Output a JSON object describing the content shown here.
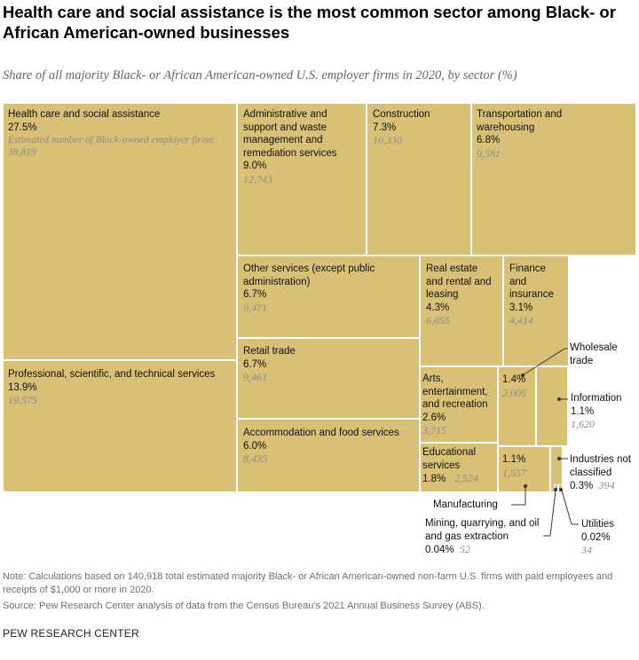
{
  "header": {
    "title": "Health care and social assistance is the most common sector among Black- or African American-owned businesses",
    "subtitle": "Share of all majority Black- or African American-owned U.S. employer firms in 2020, by sector (%)"
  },
  "chart_data": {
    "type": "treemap",
    "tile_color": "#d8c076",
    "count_label": "Estimated number of Black-owned employer firms: 38,819",
    "items": [
      {
        "name": "Health care and social assistance",
        "percent": "27.5%",
        "value": 27.5,
        "count": "38,819"
      },
      {
        "name": "Professional, scientific, and technical services",
        "percent": "13.9%",
        "value": 13.9,
        "count": "19,575"
      },
      {
        "name": "Administrative and support and waste management and remediation services",
        "percent": "9.0%",
        "value": 9.0,
        "count": "12,743"
      },
      {
        "name": "Construction",
        "percent": "7.3%",
        "value": 7.3,
        "count": "10,330"
      },
      {
        "name": "Transportation and warehousing",
        "percent": "6.8%",
        "value": 6.8,
        "count": "9,581"
      },
      {
        "name": "Other services (except public administration)",
        "percent": "6.7%",
        "value": 6.7,
        "count": "9,471"
      },
      {
        "name": "Retail trade",
        "percent": "6.7%",
        "value": 6.7,
        "count": "9,461"
      },
      {
        "name": "Accommodation and food services",
        "percent": "6.0%",
        "value": 6.0,
        "count": "8,435"
      },
      {
        "name": "Real estate and rental and leasing",
        "percent": "4.3%",
        "value": 4.3,
        "count": "6,055"
      },
      {
        "name": "Finance and insurance",
        "percent": "3.1%",
        "value": 3.1,
        "count": "4,414"
      },
      {
        "name": "Arts, entertainment, and recreation",
        "percent": "2.6%",
        "value": 2.6,
        "count": "3,715"
      },
      {
        "name": "Educational services",
        "percent": "1.8%",
        "value": 1.8,
        "count": "2,524"
      },
      {
        "name": "Wholesale trade",
        "percent": "1.4%",
        "value": 1.4,
        "count": "2,005"
      },
      {
        "name": "Information",
        "percent": "1.1%",
        "value": 1.1,
        "count": "1,620"
      },
      {
        "name": "Manufacturing",
        "percent": "1.1%",
        "value": 1.1,
        "count": "1,557"
      },
      {
        "name": "Industries not classified",
        "percent": "0.3%",
        "value": 0.3,
        "count": "394"
      },
      {
        "name": "Mining, quarrying, and oil and gas extraction",
        "percent": "0.04%",
        "value": 0.04,
        "count": "52"
      },
      {
        "name": "Utilities",
        "percent": "0.02%",
        "value": 0.02,
        "count": "34"
      }
    ]
  },
  "footer": {
    "note": "Note: Calculations based on 140,918 total estimated majority Black- or African American-owned non-farm U.S. firms with paid employees and receipts of $1,000 or more in 2020.",
    "source": "Source: Pew Research Center analysis of data from the Census Bureau’s 2021 Annual Business Survey (ABS).",
    "org": "PEW RESEARCH CENTER"
  }
}
